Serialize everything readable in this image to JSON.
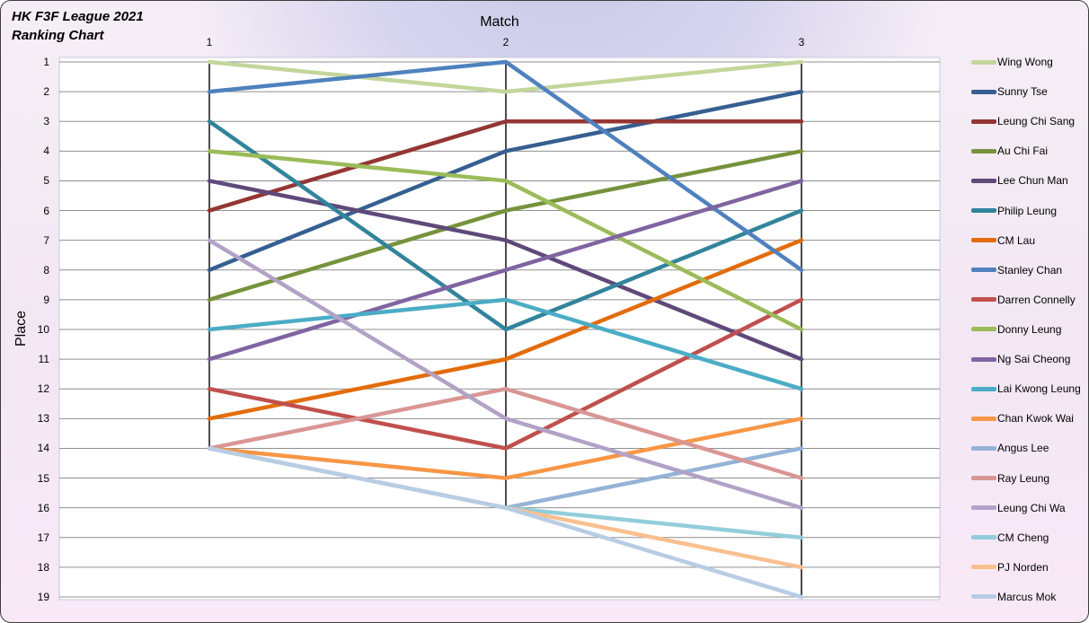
{
  "title": {
    "line1": "HK F3F League 2021",
    "line2": "Ranking Chart"
  },
  "chart_data": {
    "type": "line",
    "subtype": "ranking-bump-chart",
    "title": "HK F3F League 2021 Ranking Chart",
    "xlabel": "Match",
    "ylabel": "Place",
    "x_categories": [
      "1",
      "2",
      "3"
    ],
    "y_ticks": [
      "1",
      "2",
      "3",
      "4",
      "5",
      "6",
      "7",
      "8",
      "9",
      "10",
      "11",
      "12",
      "13",
      "14",
      "15",
      "16",
      "17",
      "18",
      "19"
    ],
    "y_axis": {
      "min": 1,
      "max": 19,
      "inverted": true
    },
    "grid": "horizontal",
    "legend_position": "right",
    "series": [
      {
        "name": "Wing Wong",
        "color": "#C3D69B",
        "places": [
          1,
          2,
          1
        ]
      },
      {
        "name": "Sunny Tse",
        "color": "#365F91",
        "places": [
          8,
          4,
          2
        ]
      },
      {
        "name": "Leung Chi Sang",
        "color": "#943634",
        "places": [
          6,
          3,
          3
        ]
      },
      {
        "name": "Au Chi Fai",
        "color": "#76923C",
        "places": [
          9,
          6,
          4
        ]
      },
      {
        "name": "Lee Chun Man",
        "color": "#5F497A",
        "places": [
          5,
          7,
          11
        ]
      },
      {
        "name": "Philip Leung",
        "color": "#31849B",
        "places": [
          3,
          10,
          6
        ]
      },
      {
        "name": "CM Lau",
        "color": "#E36C0A",
        "places": [
          13,
          11,
          7
        ]
      },
      {
        "name": "Stanley Chan",
        "color": "#4F81BD",
        "places": [
          2,
          1,
          8
        ]
      },
      {
        "name": "Darren Connelly",
        "color": "#C0504D",
        "places": [
          12,
          14,
          9
        ]
      },
      {
        "name": "Donny Leung",
        "color": "#9BBB59",
        "places": [
          4,
          5,
          10
        ]
      },
      {
        "name": "Ng Sai Cheong",
        "color": "#8064A2",
        "places": [
          11,
          8,
          5
        ]
      },
      {
        "name": "Lai Kwong Leung",
        "color": "#4BACC6",
        "places": [
          10,
          9,
          12
        ]
      },
      {
        "name": "Chan Kwok Wai",
        "color": "#F79646",
        "places": [
          14,
          15,
          13
        ]
      },
      {
        "name": "Angus Lee",
        "color": "#95B3D7",
        "places": [
          14,
          16,
          14
        ]
      },
      {
        "name": "Ray Leung",
        "color": "#D99694",
        "places": [
          14,
          12,
          15
        ]
      },
      {
        "name": "Leung Chi Wa",
        "color": "#B2A2C7",
        "places": [
          7,
          13,
          16
        ]
      },
      {
        "name": "CM Cheng",
        "color": "#92CDDC",
        "places": [
          14,
          16,
          17
        ]
      },
      {
        "name": "PJ Norden",
        "color": "#FABF8F",
        "places": [
          14,
          16,
          18
        ]
      },
      {
        "name": "Marcus Mok",
        "color": "#B8CCE4",
        "places": [
          14,
          16,
          19
        ]
      }
    ]
  }
}
